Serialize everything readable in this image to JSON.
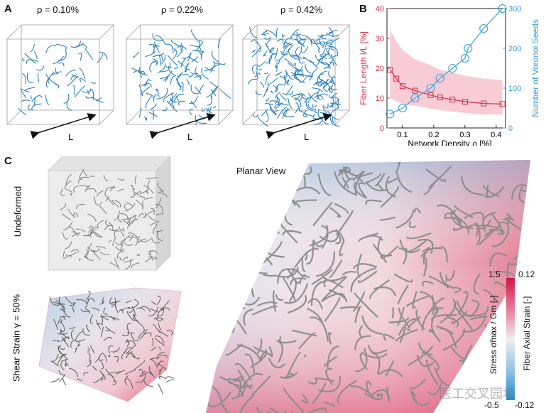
{
  "panel_a": {
    "letter": "A",
    "cubes": [
      {
        "label": "ρ = 0.10%",
        "length_label": "L"
      },
      {
        "label": "ρ = 0.22%",
        "length_label": "L"
      },
      {
        "label": "ρ = 0.42%",
        "length_label": "L"
      }
    ]
  },
  "panel_b": {
    "letter": "B"
  },
  "panel_c": {
    "letter": "C",
    "undeformed_label": "Undeformed",
    "shear_label": "Shear Strain γ = 50%",
    "planar_label": "Planar View",
    "colorbar": {
      "stress_label": "Stress  σ̃max / Gm  [-]",
      "strain_label": "Fiber Axial Strain [-]",
      "left_top": "1.5",
      "left_bottom": "-0.5",
      "right_top": "0.12",
      "right_bottom": "-0.12"
    },
    "watermark": "医工交叉园地"
  },
  "colors": {
    "fiber_blue": "#2a7fc0",
    "red_series": "#d0314e",
    "red_band": "#f6c3cd",
    "blue_series": "#3aa0db",
    "red_pink": "#e7546e"
  },
  "chart_data": {
    "type": "line",
    "xlabel": "Network Density ρ  [%]",
    "xlim": [
      0.05,
      0.43
    ],
    "x_ticks": [
      "0.1",
      "0.2",
      "0.3",
      "0.4"
    ],
    "y_left": {
      "label": "Fiber Length l/L [%]",
      "lim": [
        0,
        40
      ],
      "ticks": [
        "0",
        "10",
        "20",
        "30",
        "40"
      ]
    },
    "y_right": {
      "label": "Number of Voronoi Seeds",
      "lim": [
        0,
        300
      ],
      "ticks": [
        "0",
        "100",
        "200",
        "300"
      ]
    },
    "series": [
      {
        "axis": "left",
        "marker": "square",
        "x": [
          0.06,
          0.08,
          0.1,
          0.14,
          0.19,
          0.22,
          0.26,
          0.3,
          0.36,
          0.42
        ],
        "y": [
          19.5,
          16.5,
          14.0,
          12.5,
          11.0,
          10.2,
          9.5,
          8.8,
          8.2,
          8.0
        ],
        "band_upper": [
          33,
          29,
          26,
          23,
          21,
          19.5,
          18.5,
          17.5,
          16.5,
          16.0
        ],
        "band_lower": [
          10,
          9.0,
          8.0,
          7.5,
          6.5,
          6.0,
          5.5,
          5.0,
          4.5,
          4.5
        ]
      },
      {
        "axis": "right",
        "marker": "circle",
        "x": [
          0.06,
          0.1,
          0.14,
          0.19,
          0.22,
          0.26,
          0.3,
          0.31,
          0.36,
          0.42
        ],
        "y": [
          35,
          50,
          75,
          100,
          125,
          150,
          175,
          200,
          250,
          300
        ]
      }
    ]
  }
}
